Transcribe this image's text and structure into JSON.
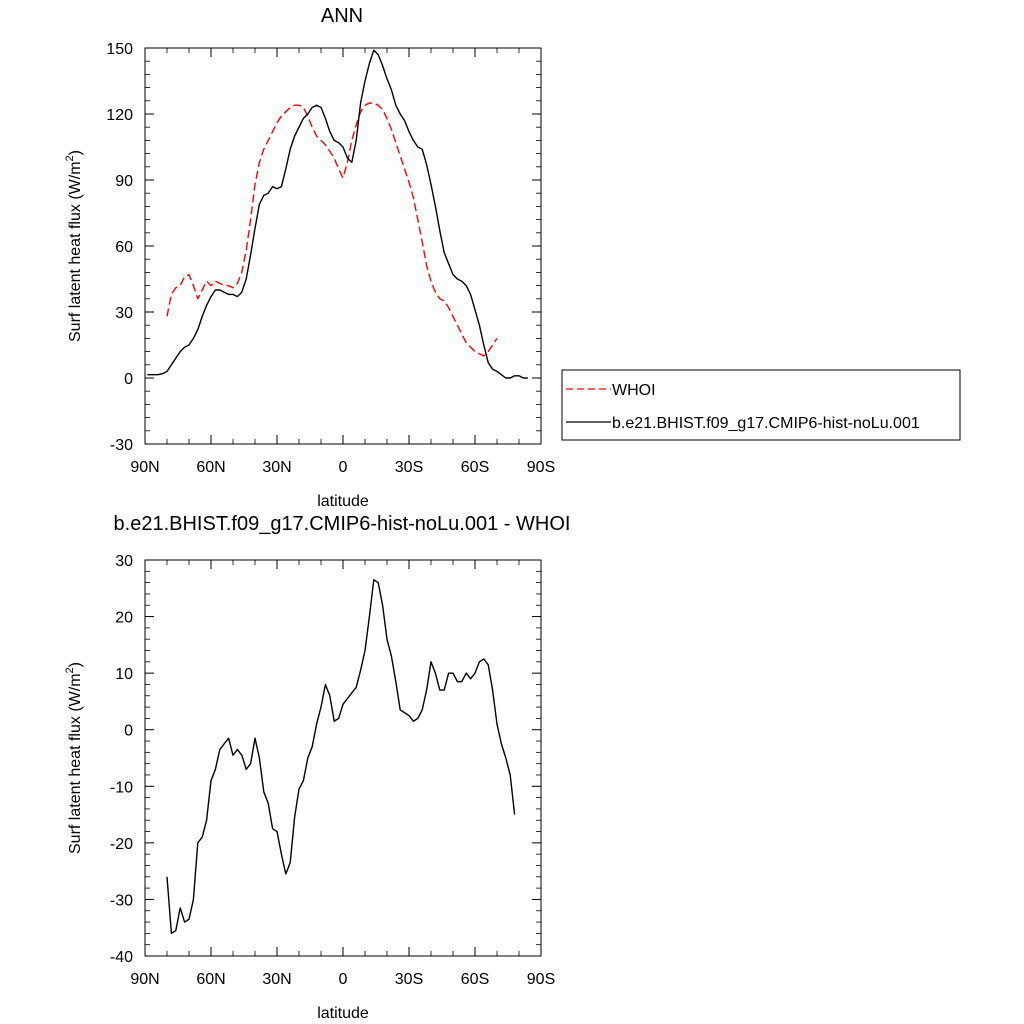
{
  "chart_data": [
    {
      "type": "line",
      "title": "ANN",
      "xlabel": "latitude",
      "ylabel": "Surf latent heat flux (W/m",
      "ylabel_sup": "2",
      "ylabel_close": ")",
      "xlim": [
        90,
        -90
      ],
      "ylim": [
        -30,
        150
      ],
      "x_ticks": [
        90,
        60,
        30,
        0,
        -30,
        -60,
        -90
      ],
      "x_tick_labels": [
        "90N",
        "60N",
        "30N",
        "0",
        "30S",
        "60S",
        "90S"
      ],
      "y_ticks": [
        -30,
        0,
        30,
        60,
        90,
        120,
        150
      ],
      "y_tick_labels": [
        "-30",
        "0",
        "30",
        "60",
        "90",
        "120",
        "150"
      ],
      "legend": "outside-right",
      "series": [
        {
          "name": "WHOI",
          "color": "#ff0000",
          "dash": "dashed",
          "x": [
            80,
            78,
            76,
            74,
            72,
            70,
            68,
            66,
            64,
            62,
            60,
            58,
            56,
            54,
            52,
            50,
            48,
            46,
            44,
            42,
            40,
            38,
            36,
            34,
            32,
            30,
            28,
            26,
            24,
            22,
            20,
            18,
            16,
            14,
            12,
            10,
            8,
            6,
            4,
            2,
            0,
            -2,
            -4,
            -6,
            -8,
            -10,
            -12,
            -14,
            -16,
            -18,
            -20,
            -22,
            -24,
            -26,
            -28,
            -30,
            -32,
            -34,
            -36,
            -38,
            -40,
            -42,
            -44,
            -46,
            -48,
            -50,
            -52,
            -54,
            -56,
            -58,
            -60,
            -62,
            -64,
            -66,
            -68,
            -70,
            -72,
            -74,
            -76,
            -78
          ],
          "y": [
            28,
            38,
            41,
            42,
            46,
            47,
            42,
            36,
            40,
            44,
            42,
            44,
            43,
            42,
            42,
            41,
            43,
            48,
            58,
            72,
            88,
            98,
            104,
            108,
            112,
            116,
            119,
            121,
            123,
            124,
            124,
            123,
            119,
            114,
            110,
            108,
            106,
            103,
            100,
            95,
            91,
            98,
            108,
            115,
            121,
            124,
            125,
            125,
            124,
            122,
            118,
            113,
            107,
            101,
            95,
            89,
            82,
            72,
            62,
            51,
            44,
            39,
            36,
            35,
            32,
            28,
            24,
            20,
            16,
            14,
            12,
            11,
            10,
            12,
            15,
            18,
            null,
            null,
            null,
            null
          ]
        },
        {
          "name": "b.e21.BHIST.f09_g17.CMIP6-hist-noLu.001",
          "color": "#000000",
          "dash": "solid",
          "x": [
            89,
            86,
            84,
            82,
            80,
            78,
            76,
            74,
            72,
            70,
            68,
            66,
            64,
            62,
            60,
            58,
            56,
            54,
            52,
            50,
            48,
            46,
            44,
            42,
            40,
            38,
            36,
            34,
            32,
            30,
            28,
            26,
            24,
            22,
            20,
            18,
            16,
            14,
            12,
            10,
            8,
            6,
            4,
            2,
            0,
            -2,
            -4,
            -6,
            -8,
            -10,
            -12,
            -14,
            -16,
            -18,
            -20,
            -22,
            -24,
            -26,
            -28,
            -30,
            -32,
            -34,
            -36,
            -38,
            -40,
            -42,
            -44,
            -46,
            -48,
            -50,
            -52,
            -54,
            -56,
            -58,
            -60,
            -62,
            -64,
            -66,
            -68,
            -70,
            -72,
            -74,
            -76,
            -78,
            -80,
            -82,
            -84,
            -86,
            -89
          ],
          "y": [
            1.5,
            1.5,
            1.5,
            2,
            3,
            6,
            9,
            12,
            14,
            15,
            18,
            22,
            28,
            33,
            37,
            40,
            40,
            39,
            38,
            38,
            37,
            39,
            45,
            56,
            68,
            79,
            83,
            84,
            87,
            86,
            87,
            95,
            104,
            110,
            114,
            118,
            120,
            123,
            124,
            123,
            118,
            112,
            108,
            107,
            105,
            100,
            98,
            108,
            125,
            135,
            143,
            149,
            147,
            142,
            136,
            131,
            124,
            120,
            117,
            112,
            108,
            105,
            104,
            97,
            88,
            78,
            67,
            57,
            52,
            47,
            45,
            44,
            42,
            38,
            31,
            24,
            15,
            7,
            4,
            3,
            1.5,
            0,
            0,
            1,
            1,
            0,
            0,
            null,
            null
          ]
        }
      ]
    },
    {
      "type": "line",
      "title": "b.e21.BHIST.f09_g17.CMIP6-hist-noLu.001 - WHOI",
      "xlabel": "latitude",
      "ylabel": "Surf latent heat flux (W/m",
      "ylabel_sup": "2",
      "ylabel_close": ")",
      "xlim": [
        90,
        -90
      ],
      "ylim": [
        -40,
        30
      ],
      "x_ticks": [
        90,
        60,
        30,
        0,
        -30,
        -60,
        -90
      ],
      "x_tick_labels": [
        "90N",
        "60N",
        "30N",
        "0",
        "30S",
        "60S",
        "90S"
      ],
      "y_ticks": [
        -40,
        -30,
        -20,
        -10,
        0,
        10,
        20,
        30
      ],
      "y_tick_labels": [
        "-40",
        "-30",
        "-20",
        "-10",
        "0",
        "10",
        "20",
        "30"
      ],
      "series": [
        {
          "color": "#000000",
          "dash": "solid",
          "x": [
            80,
            78,
            76,
            74,
            72,
            70,
            68,
            66,
            64,
            62,
            60,
            58,
            56,
            54,
            52,
            50,
            48,
            46,
            44,
            42,
            40,
            38,
            36,
            34,
            32,
            30,
            28,
            26,
            24,
            22,
            20,
            18,
            16,
            14,
            12,
            10,
            8,
            6,
            4,
            2,
            0,
            -2,
            -4,
            -6,
            -8,
            -10,
            -12,
            -14,
            -16,
            -18,
            -20,
            -22,
            -24,
            -26,
            -28,
            -30,
            -32,
            -34,
            -36,
            -38,
            -40,
            -42,
            -44,
            -46,
            -48,
            -50,
            -52,
            -54,
            -56,
            -58,
            -60,
            -62,
            -64,
            -66,
            -68,
            -70,
            -72,
            -74,
            -76,
            -78
          ],
          "y": [
            -26,
            -36,
            -35.5,
            -31.5,
            -34,
            -33.5,
            -30,
            -20,
            -19,
            -16,
            -9,
            -7,
            -3.5,
            -2.5,
            -1.5,
            -4.5,
            -3.5,
            -4.5,
            -7,
            -6,
            -1.5,
            -5,
            -11,
            -13,
            -17.5,
            -18,
            -22,
            -25.5,
            -23.5,
            -15.5,
            -10.5,
            -9,
            -5,
            -3,
            1,
            4,
            8,
            6,
            1.5,
            2,
            4.5,
            5.5,
            6.5,
            7.5,
            10.5,
            14,
            20,
            26.5,
            26,
            22,
            16,
            13,
            8.5,
            3.5,
            3,
            2.5,
            1.5,
            2,
            3.5,
            7,
            12,
            10,
            7,
            7,
            10,
            10,
            8.5,
            8.5,
            10,
            9,
            10,
            12,
            12.5,
            11.5,
            7,
            1,
            -2.5,
            -5,
            -8,
            -15
          ]
        }
      ]
    }
  ]
}
